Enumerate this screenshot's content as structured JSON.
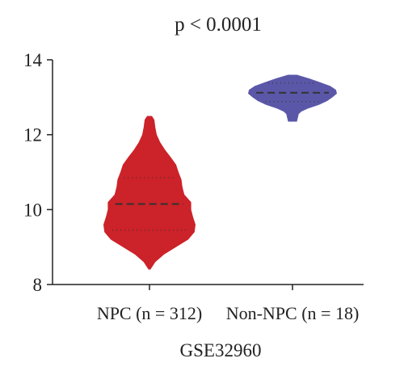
{
  "chart_data": {
    "type": "violin",
    "title": "p < 0.0001",
    "xlabel": "GSE32960",
    "ylabel": "",
    "ylim": [
      8,
      14
    ],
    "yticks": [
      8,
      10,
      12,
      14
    ],
    "categories": [
      "NPC (n = 312)",
      "Non-NPC (n = 18)"
    ],
    "series": [
      {
        "category": "NPC (n = 312)",
        "color": "#CC2229",
        "min": 8.4,
        "max": 12.5,
        "median": 10.15,
        "q1": 9.45,
        "q3": 10.85,
        "density": [
          {
            "y": 8.4,
            "w": 0.02
          },
          {
            "y": 8.6,
            "w": 0.12
          },
          {
            "y": 8.8,
            "w": 0.3
          },
          {
            "y": 9.0,
            "w": 0.55
          },
          {
            "y": 9.2,
            "w": 0.8
          },
          {
            "y": 9.4,
            "w": 0.93
          },
          {
            "y": 9.6,
            "w": 0.95
          },
          {
            "y": 9.8,
            "w": 0.9
          },
          {
            "y": 10.0,
            "w": 0.86
          },
          {
            "y": 10.2,
            "w": 0.86
          },
          {
            "y": 10.4,
            "w": 0.72
          },
          {
            "y": 10.6,
            "w": 0.68
          },
          {
            "y": 10.8,
            "w": 0.66
          },
          {
            "y": 11.0,
            "w": 0.6
          },
          {
            "y": 11.2,
            "w": 0.55
          },
          {
            "y": 11.4,
            "w": 0.44
          },
          {
            "y": 11.6,
            "w": 0.32
          },
          {
            "y": 11.8,
            "w": 0.22
          },
          {
            "y": 12.0,
            "w": 0.15
          },
          {
            "y": 12.2,
            "w": 0.12
          },
          {
            "y": 12.4,
            "w": 0.1
          },
          {
            "y": 12.5,
            "w": 0.05
          }
        ]
      },
      {
        "category": "Non-NPC (n = 18)",
        "color": "#5B57A8",
        "min": 12.35,
        "max": 13.6,
        "median": 13.12,
        "q1": 12.88,
        "q3": 13.38,
        "density": [
          {
            "y": 12.35,
            "w": 0.1
          },
          {
            "y": 12.45,
            "w": 0.12
          },
          {
            "y": 12.55,
            "w": 0.14
          },
          {
            "y": 12.62,
            "w": 0.2
          },
          {
            "y": 12.7,
            "w": 0.35
          },
          {
            "y": 12.8,
            "w": 0.6
          },
          {
            "y": 12.9,
            "w": 0.78
          },
          {
            "y": 13.0,
            "w": 0.9
          },
          {
            "y": 13.1,
            "w": 1.0
          },
          {
            "y": 13.2,
            "w": 0.98
          },
          {
            "y": 13.3,
            "w": 0.85
          },
          {
            "y": 13.4,
            "w": 0.62
          },
          {
            "y": 13.5,
            "w": 0.38
          },
          {
            "y": 13.6,
            "w": 0.1
          }
        ]
      }
    ]
  }
}
